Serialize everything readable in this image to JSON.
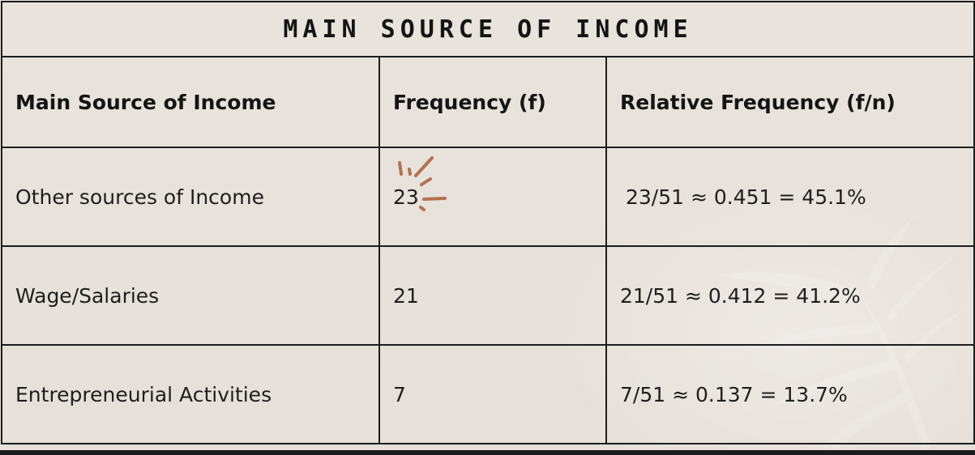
{
  "table": {
    "title": "MAIN SOURCE OF INCOME",
    "headers": [
      "Main Source of Income",
      "Frequency (f)",
      "Relative Frequency (f/n)"
    ],
    "rows": [
      {
        "source": "Other sources of Income",
        "frequency": "23",
        "relative": "23/51 ≈ 0.451 = 45.1%"
      },
      {
        "source": "Wage/Salaries",
        "frequency": "21",
        "relative": "21/51 ≈ 0.412 = 41.2%"
      },
      {
        "source": "Entrepreneurial Activities",
        "frequency": "7",
        "relative": "7/51 ≈ 0.137 = 13.7%"
      }
    ]
  },
  "colors": {
    "background": "#e8e2dc",
    "border": "#1c1c1c",
    "sparkle": "#b5714f"
  },
  "icons": {
    "sparkle": "sparkle-doodle-icon",
    "leaf": "palm-leaf-shadow-icon"
  }
}
